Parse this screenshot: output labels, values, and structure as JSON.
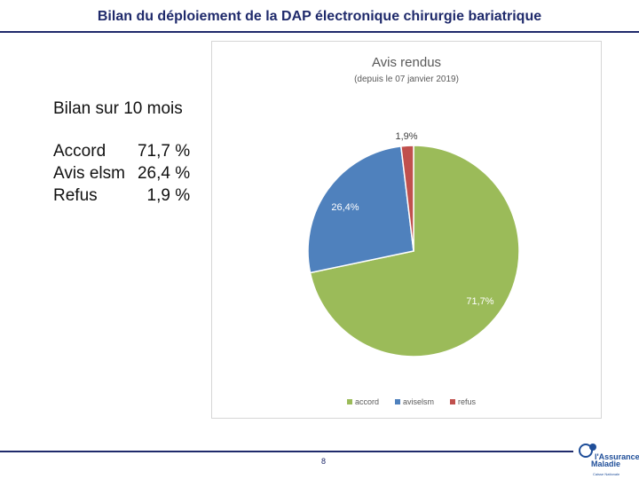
{
  "slide": {
    "title": "Bilan du déploiement de la DAP électronique chirurgie bariatrique",
    "page_number": "8"
  },
  "summary": {
    "title": "Bilan sur 10 mois",
    "rows": [
      {
        "label": "Accord",
        "value": "71,7 %"
      },
      {
        "label": "Avis elsm",
        "value": "26,4 %"
      },
      {
        "label": "Refus",
        "value": "1,9 %"
      }
    ]
  },
  "chart_data": {
    "type": "pie",
    "title": "Avis rendus",
    "subtitle": "(depuis le 07 janvier 2019)",
    "slices": [
      {
        "name": "accord",
        "value": 71.7,
        "label": "71,7%",
        "color": "#9bbb59"
      },
      {
        "name": "aviselsm",
        "value": 26.4,
        "label": "26,4%",
        "color": "#4f81bd"
      },
      {
        "name": "refus",
        "value": 1.9,
        "label": "1,9%",
        "color": "#c0504d"
      }
    ],
    "legend_position": "bottom"
  },
  "logo": {
    "line1": "l'Assurance",
    "line2": "Maladie",
    "line3": "Caisse Nationale"
  }
}
